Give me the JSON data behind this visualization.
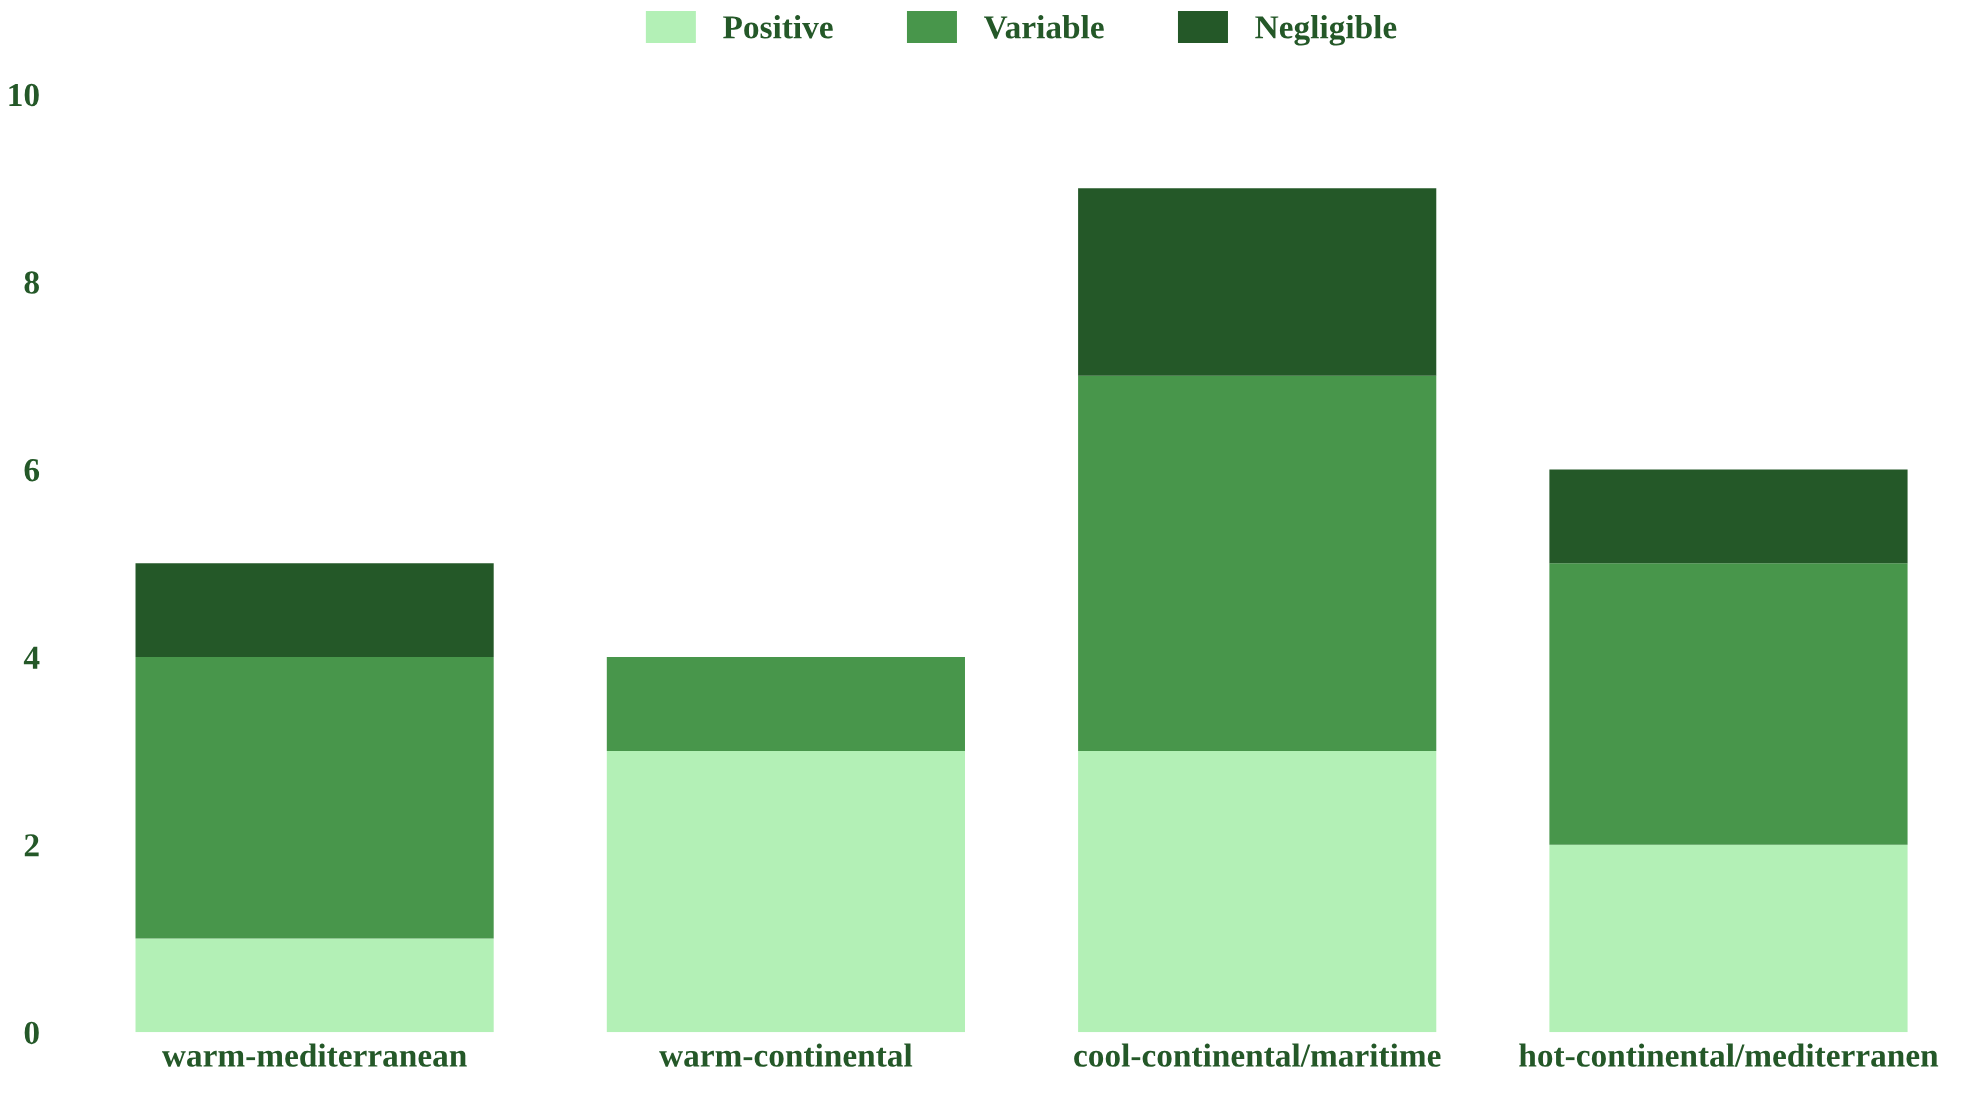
{
  "chart_data": {
    "type": "bar",
    "stacked": true,
    "categories": [
      "warm-mediterranean",
      "warm-continental",
      "cool-continental/maritime",
      "hot-continental/mediterranen"
    ],
    "series": [
      {
        "name": "Positive",
        "color": "#b3f0b6",
        "values": [
          1,
          3,
          3,
          2
        ]
      },
      {
        "name": "Variable",
        "color": "#48964b",
        "values": [
          3,
          1,
          4,
          3
        ]
      },
      {
        "name": "Negligible",
        "color": "#245828",
        "values": [
          1,
          0,
          2,
          1
        ]
      }
    ],
    "ylim": [
      0,
      10
    ],
    "yticks": [
      0,
      2,
      4,
      6,
      8,
      10
    ],
    "grid": false,
    "legend": "top"
  }
}
